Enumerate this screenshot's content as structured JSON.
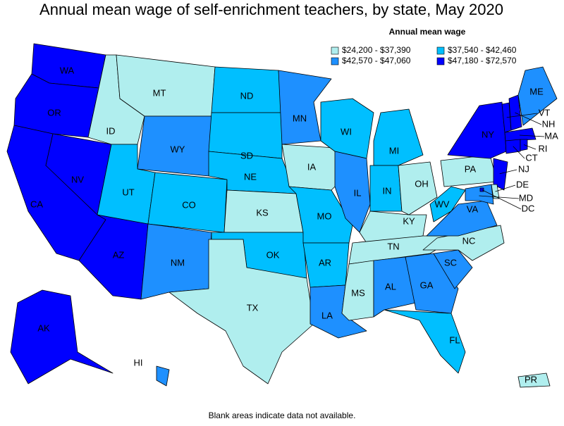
{
  "title": "Annual mean wage of self-enrichment teachers, by state, May 2020",
  "legend": {
    "title": "Annual mean wage",
    "items": [
      {
        "label": "$24,200 - $37,390",
        "color": "#b0eeee"
      },
      {
        "label": "$37,540 - $42,460",
        "color": "#00bfff"
      },
      {
        "label": "$42,570 - $47,060",
        "color": "#1e90ff"
      },
      {
        "label": "$47,180 - $72,570",
        "color": "#0000ff"
      }
    ]
  },
  "states": [
    {
      "label": "WA",
      "color": "#0000ff"
    },
    {
      "label": "OR",
      "color": "#0000ff"
    },
    {
      "label": "CA",
      "color": "#0000ff"
    },
    {
      "label": "NV",
      "color": "#0000ff"
    },
    {
      "label": "AZ",
      "color": "#0000ff"
    },
    {
      "label": "ID",
      "color": "#b0eeee"
    },
    {
      "label": "MT",
      "color": "#b0eeee"
    },
    {
      "label": "WY",
      "color": "#1e90ff"
    },
    {
      "label": "UT",
      "color": "#00bfff"
    },
    {
      "label": "CO",
      "color": "#00bfff"
    },
    {
      "label": "NM",
      "color": "#1e90ff"
    },
    {
      "label": "ND",
      "color": "#00bfff"
    },
    {
      "label": "SD",
      "color": "#00bfff"
    },
    {
      "label": "NE",
      "color": "#00bfff"
    },
    {
      "label": "KS",
      "color": "#b0eeee"
    },
    {
      "label": "OK",
      "color": "#00bfff"
    },
    {
      "label": "TX",
      "color": "#b0eeee"
    },
    {
      "label": "MN",
      "color": "#1e90ff"
    },
    {
      "label": "IA",
      "color": "#b0eeee"
    },
    {
      "label": "MO",
      "color": "#00bfff"
    },
    {
      "label": "AR",
      "color": "#00bfff"
    },
    {
      "label": "LA",
      "color": "#1e90ff"
    },
    {
      "label": "WI",
      "color": "#00bfff"
    },
    {
      "label": "IL",
      "color": "#1e90ff"
    },
    {
      "label": "MI",
      "color": "#00bfff"
    },
    {
      "label": "IN",
      "color": "#00bfff"
    },
    {
      "label": "OH",
      "color": "#b0eeee"
    },
    {
      "label": "KY",
      "color": "#b0eeee"
    },
    {
      "label": "TN",
      "color": "#b0eeee"
    },
    {
      "label": "MS",
      "color": "#b0eeee"
    },
    {
      "label": "AL",
      "color": "#1e90ff"
    },
    {
      "label": "GA",
      "color": "#1e90ff"
    },
    {
      "label": "FL",
      "color": "#00bfff"
    },
    {
      "label": "SC",
      "color": "#1e90ff"
    },
    {
      "label": "NC",
      "color": "#b0eeee"
    },
    {
      "label": "VA",
      "color": "#1e90ff"
    },
    {
      "label": "WV",
      "color": "#00bfff"
    },
    {
      "label": "PA",
      "color": "#b0eeee"
    },
    {
      "label": "NY",
      "color": "#0000ff"
    },
    {
      "label": "VT",
      "color": "#0000ff"
    },
    {
      "label": "NH",
      "color": "#0000ff"
    },
    {
      "label": "ME",
      "color": "#1e90ff"
    },
    {
      "label": "MA",
      "color": "#0000ff"
    },
    {
      "label": "CT",
      "color": "#0000ff"
    },
    {
      "label": "RI",
      "color": "#0000ff"
    },
    {
      "label": "NJ",
      "color": "#0000ff"
    },
    {
      "label": "DE",
      "color": "#b0eeee"
    },
    {
      "label": "MD",
      "color": "#1e90ff"
    },
    {
      "label": "DC",
      "color": "#0000ff"
    },
    {
      "label": "AK",
      "color": "#0000ff"
    },
    {
      "label": "HI",
      "color": "#1e90ff"
    },
    {
      "label": "PR",
      "color": "#b0eeee"
    }
  ],
  "footnote": "Blank areas indicate data not available."
}
